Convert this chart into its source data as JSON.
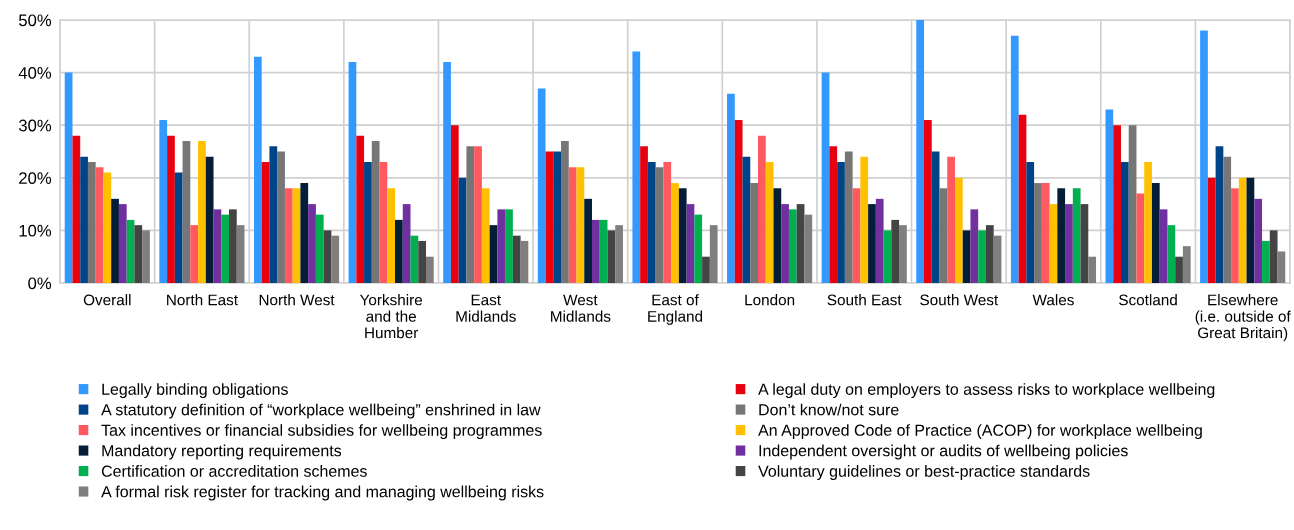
{
  "chart_data": {
    "type": "bar",
    "categories": [
      "Overall",
      "North East",
      "North West",
      "Yorkshire\nand the\nHumber",
      "East\nMidlands",
      "West\nMidlands",
      "East of\nEngland",
      "London",
      "South East",
      "South West",
      "Wales",
      "Scotland",
      "Elsewhere\n(i.e. outside of\nGreat Britain)"
    ],
    "series": [
      {
        "name": "Legally binding obligations",
        "color": "#3399ff",
        "values": [
          40,
          31,
          43,
          42,
          42,
          37,
          44,
          36,
          40,
          50,
          47,
          33,
          48
        ]
      },
      {
        "name": "A legal duty on employers to assess risks to workplace wellbeing",
        "color": "#e8000e",
        "values": [
          28,
          28,
          23,
          28,
          30,
          25,
          26,
          31,
          26,
          31,
          32,
          30,
          20
        ]
      },
      {
        "name": "A statutory definition of “workplace wellbeing” enshrined in law",
        "color": "#004488",
        "values": [
          24,
          21,
          26,
          23,
          20,
          25,
          23,
          24,
          23,
          25,
          23,
          23,
          26
        ]
      },
      {
        "name": "Don’t know/not sure",
        "color": "#767676",
        "values": [
          23,
          27,
          25,
          27,
          26,
          27,
          22,
          19,
          25,
          18,
          19,
          30,
          24
        ]
      },
      {
        "name": "Tax incentives or financial subsidies for wellbeing programmes",
        "color": "#ff5a5f",
        "values": [
          22,
          11,
          18,
          23,
          26,
          22,
          23,
          28,
          18,
          24,
          19,
          17,
          18
        ]
      },
      {
        "name": "An Approved Code of Practice (ACOP) for workplace wellbeing",
        "color": "#ffc000",
        "values": [
          21,
          27,
          18,
          18,
          18,
          22,
          19,
          23,
          24,
          20,
          15,
          23,
          20
        ]
      },
      {
        "name": "Mandatory reporting requirements",
        "color": "#041e3a",
        "values": [
          16,
          24,
          19,
          12,
          11,
          16,
          18,
          18,
          15,
          10,
          18,
          19,
          20
        ]
      },
      {
        "name": "Independent oversight or audits of wellbeing policies",
        "color": "#7030a0",
        "values": [
          15,
          14,
          15,
          15,
          14,
          12,
          15,
          15,
          16,
          14,
          15,
          14,
          16
        ]
      },
      {
        "name": "Certification or accreditation schemes",
        "color": "#00b050",
        "values": [
          12,
          13,
          13,
          9,
          14,
          12,
          13,
          14,
          10,
          10,
          18,
          11,
          8
        ]
      },
      {
        "name": "Voluntary guidelines or best-practice standards",
        "color": "#444444",
        "values": [
          11,
          14,
          10,
          8,
          9,
          10,
          5,
          15,
          12,
          11,
          15,
          5,
          10
        ]
      },
      {
        "name": "A formal risk register for tracking and managing wellbeing risks",
        "color": "#7f7f7f",
        "values": [
          10,
          11,
          9,
          5,
          8,
          11,
          11,
          13,
          11,
          9,
          5,
          7,
          6
        ]
      }
    ],
    "ylim": [
      0,
      50
    ],
    "yticks": [
      {
        "value": 0,
        "label": "0%"
      },
      {
        "value": 10,
        "label": "10%"
      },
      {
        "value": 20,
        "label": "20%"
      },
      {
        "value": 30,
        "label": "30%"
      },
      {
        "value": 40,
        "label": "40%"
      },
      {
        "value": 50,
        "label": "50%"
      }
    ],
    "grid": true,
    "legend": "bottom"
  }
}
